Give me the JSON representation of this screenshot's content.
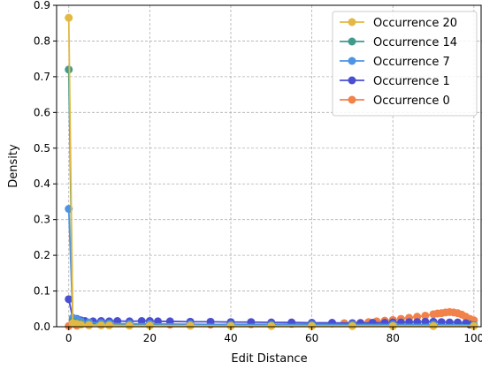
{
  "chart_data": {
    "type": "line",
    "xlabel": "Edit Distance",
    "ylabel": "Density",
    "xlim": [
      -3,
      102
    ],
    "ylim": [
      0,
      0.9
    ],
    "xticks": [
      0,
      20,
      40,
      60,
      80,
      100
    ],
    "yticks": [
      0.0,
      0.1,
      0.2,
      0.3,
      0.4,
      0.5,
      0.6,
      0.7,
      0.8,
      0.9
    ],
    "grid": true,
    "legend_position": "top-right",
    "series": [
      {
        "name": "Occurrence 20",
        "color": "#E3B943",
        "x": [
          0,
          1,
          2,
          3,
          5,
          8,
          10,
          15,
          20,
          30,
          40,
          50,
          60,
          70,
          80,
          90,
          100
        ],
        "y": [
          0.865,
          0.01,
          0.008,
          0.006,
          0.005,
          0.004,
          0.004,
          0.003,
          0.003,
          0.003,
          0.002,
          0.002,
          0.002,
          0.002,
          0.002,
          0.002,
          0.002
        ]
      },
      {
        "name": "Occurrence 14",
        "color": "#419A8C",
        "x": [
          0,
          1,
          2,
          3,
          5,
          8,
          10,
          15,
          20,
          30,
          40,
          50,
          60,
          70,
          80,
          90,
          100
        ],
        "y": [
          0.72,
          0.015,
          0.01,
          0.008,
          0.006,
          0.005,
          0.005,
          0.004,
          0.004,
          0.003,
          0.003,
          0.003,
          0.003,
          0.003,
          0.003,
          0.003,
          0.003
        ]
      },
      {
        "name": "Occurrence 7",
        "color": "#4E94E4",
        "x": [
          0,
          1,
          2,
          3,
          5,
          8,
          10,
          15,
          20,
          30,
          40,
          50,
          60,
          70,
          80,
          90,
          100
        ],
        "y": [
          0.33,
          0.025,
          0.02,
          0.015,
          0.012,
          0.01,
          0.009,
          0.008,
          0.008,
          0.007,
          0.006,
          0.006,
          0.006,
          0.006,
          0.006,
          0.006,
          0.005
        ]
      },
      {
        "name": "Occurrence 1",
        "color": "#4A4FD1",
        "x": [
          0,
          1,
          2,
          3,
          4,
          6,
          8,
          10,
          12,
          15,
          18,
          20,
          22,
          25,
          30,
          35,
          40,
          45,
          50,
          55,
          60,
          65,
          70,
          72,
          75,
          78,
          80,
          82,
          84,
          86,
          88,
          90,
          92,
          94,
          96,
          98,
          99,
          100
        ],
        "y": [
          0.077,
          0.023,
          0.022,
          0.018,
          0.016,
          0.015,
          0.016,
          0.015,
          0.016,
          0.015,
          0.016,
          0.016,
          0.015,
          0.015,
          0.014,
          0.014,
          0.013,
          0.013,
          0.012,
          0.012,
          0.011,
          0.011,
          0.01,
          0.01,
          0.011,
          0.011,
          0.012,
          0.012,
          0.013,
          0.013,
          0.014,
          0.014,
          0.013,
          0.012,
          0.012,
          0.01,
          0.006,
          0.004
        ]
      },
      {
        "name": "Occurrence 0",
        "color": "#F0824A",
        "x": [
          0,
          2,
          5,
          10,
          15,
          20,
          25,
          30,
          35,
          40,
          45,
          50,
          55,
          60,
          65,
          68,
          70,
          72,
          74,
          76,
          78,
          80,
          82,
          84,
          86,
          88,
          90,
          91,
          92,
          93,
          94,
          95,
          96,
          97,
          98,
          99,
          100
        ],
        "y": [
          0.002,
          0.003,
          0.004,
          0.004,
          0.005,
          0.005,
          0.006,
          0.006,
          0.006,
          0.007,
          0.007,
          0.007,
          0.008,
          0.008,
          0.009,
          0.01,
          0.01,
          0.011,
          0.013,
          0.015,
          0.017,
          0.019,
          0.022,
          0.025,
          0.028,
          0.031,
          0.035,
          0.037,
          0.038,
          0.04,
          0.041,
          0.04,
          0.038,
          0.034,
          0.028,
          0.022,
          0.018
        ]
      }
    ]
  }
}
